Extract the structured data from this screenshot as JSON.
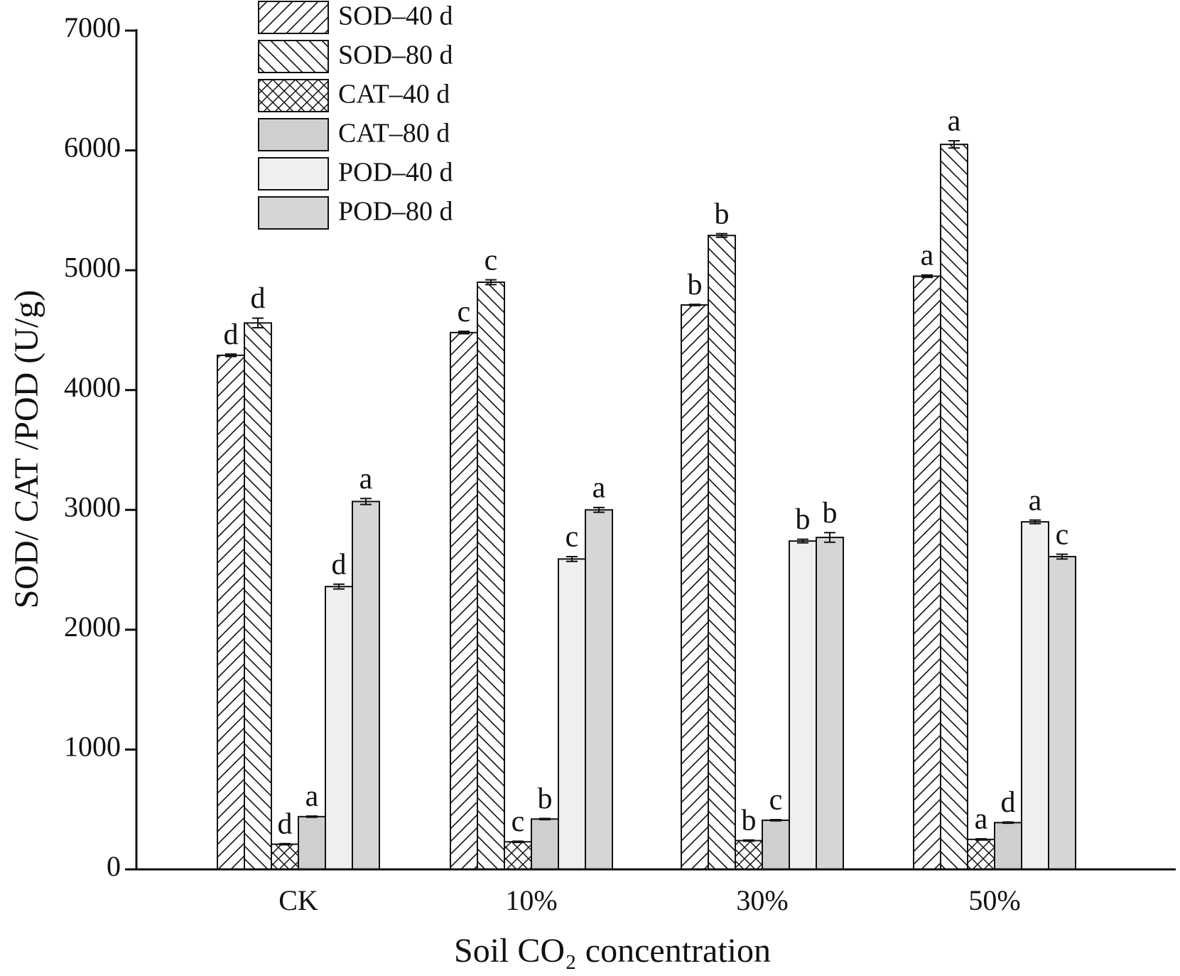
{
  "chart_data": {
    "type": "bar",
    "xlabel": "Soil CO₂ concentration",
    "ylabel": "SOD/ CAT /POD (U/g)",
    "categories": [
      "CK",
      "10%",
      "30%",
      "50%"
    ],
    "ylim": [
      0,
      7000
    ],
    "yticks": [
      0,
      1000,
      2000,
      3000,
      4000,
      5000,
      6000,
      7000
    ],
    "series": [
      {
        "name": "SOD–40 d",
        "pattern": "diagonal",
        "color": "#ffffff",
        "values": [
          4290,
          4480,
          4710,
          4950
        ],
        "errors": [
          10,
          10,
          5,
          10
        ],
        "letters": [
          "d",
          "c",
          "b",
          "a"
        ]
      },
      {
        "name": "SOD–80 d",
        "pattern": "back-diagonal",
        "color": "#ffffff",
        "values": [
          4560,
          4900,
          5290,
          6050
        ],
        "errors": [
          40,
          20,
          15,
          30
        ],
        "letters": [
          "d",
          "c",
          "b",
          "a"
        ]
      },
      {
        "name": "CAT–40 d",
        "pattern": "crosshatch",
        "color": "#ffffff",
        "values": [
          210,
          230,
          240,
          250
        ],
        "errors": [
          5,
          5,
          5,
          5
        ],
        "letters": [
          "d",
          "c",
          "b",
          "a"
        ]
      },
      {
        "name": "CAT–80 d",
        "pattern": "solid",
        "color": "#cfcfcf",
        "values": [
          440,
          420,
          410,
          390
        ],
        "errors": [
          5,
          5,
          5,
          5
        ],
        "letters": [
          "a",
          "b",
          "c",
          "d"
        ]
      },
      {
        "name": "POD–40 d",
        "pattern": "solid",
        "color": "#efefef",
        "values": [
          2360,
          2590,
          2740,
          2900
        ],
        "errors": [
          20,
          20,
          15,
          15
        ],
        "letters": [
          "d",
          "c",
          "b",
          "a"
        ]
      },
      {
        "name": "POD–80 d",
        "pattern": "solid",
        "color": "#d6d6d6",
        "values": [
          3070,
          3000,
          2770,
          2610
        ],
        "errors": [
          25,
          20,
          40,
          20
        ],
        "letters": [
          "a",
          "a",
          "b",
          "c"
        ]
      }
    ]
  }
}
